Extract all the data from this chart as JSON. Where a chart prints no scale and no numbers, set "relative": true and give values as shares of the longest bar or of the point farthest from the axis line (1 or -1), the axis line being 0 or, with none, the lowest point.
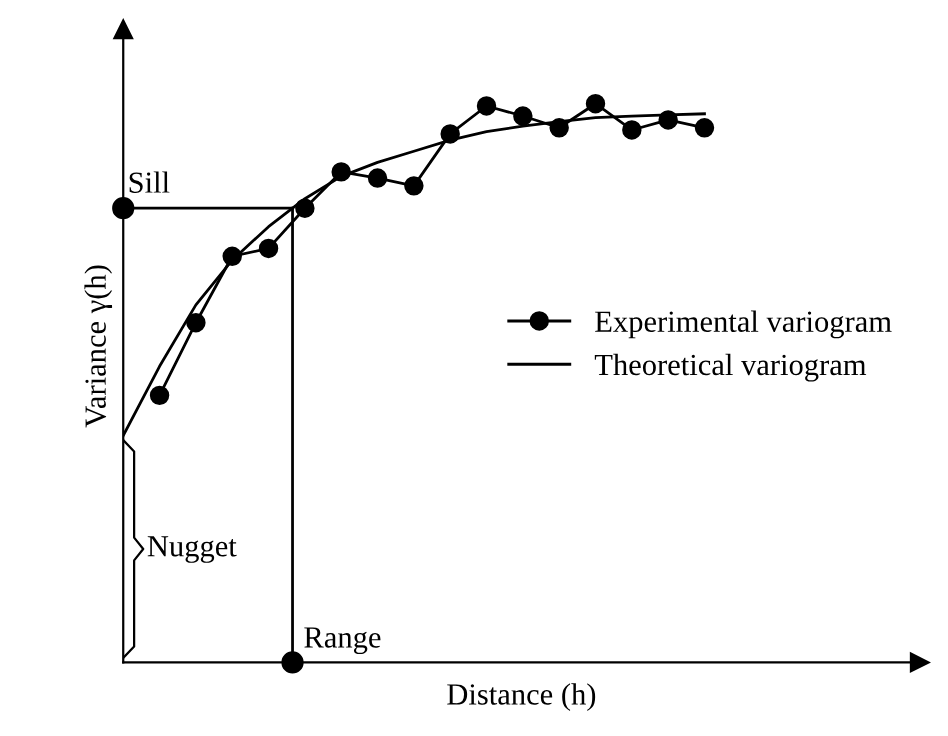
{
  "chart_data": {
    "type": "line",
    "relative": true,
    "xlabel": "Distance (h)",
    "ylabel": "Variance γ(h)",
    "categories": [
      null,
      null,
      null,
      null,
      null,
      null,
      null,
      null,
      null,
      null,
      null,
      null,
      null,
      null,
      null,
      null,
      null
    ],
    "series": [
      {
        "name": "Experimental variogram",
        "color": "#000000",
        "marker": "circle",
        "values": [
          null,
          0.478,
          0.608,
          0.727,
          0.741,
          0.813,
          0.878,
          0.867,
          0.853,
          0.946,
          0.996,
          0.978,
          0.957,
          1.0,
          0.953,
          0.971,
          0.957
        ]
      },
      {
        "name": "Theoretical variogram",
        "color": "#000000",
        "marker": "none",
        "values": [
          0.406,
          0.53,
          0.64,
          0.72,
          0.78,
          0.83,
          0.87,
          0.895,
          0.915,
          0.935,
          0.95,
          0.96,
          0.968,
          0.975,
          0.978,
          0.98,
          0.982
        ]
      }
    ],
    "ref_lines": [
      {
        "axis": "y",
        "value": 0.813,
        "label": "Sill"
      }
    ],
    "annotations": [
      "Range",
      "Nugget"
    ],
    "legend": "right"
  }
}
